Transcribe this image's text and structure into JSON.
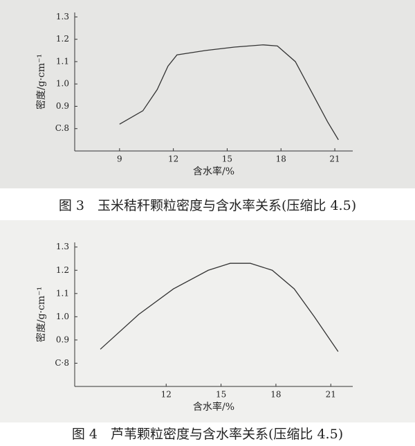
{
  "chart_data": [
    {
      "type": "line",
      "caption": "图 3　玉米秸秆颗粒密度与含水率关系(压缩比 4.5)",
      "xlabel": "含水率/%",
      "ylabel": "密度/g·cm⁻¹",
      "x": [
        9.0,
        10.3,
        11.1,
        11.7,
        12.2,
        13.8,
        15.4,
        17.0,
        17.8,
        18.8,
        19.8,
        20.6,
        21.2
      ],
      "values": [
        0.82,
        0.88,
        0.975,
        1.08,
        1.13,
        1.15,
        1.165,
        1.175,
        1.17,
        1.1,
        0.95,
        0.83,
        0.75
      ],
      "color": "#333333",
      "xlim": [
        6.5,
        22
      ],
      "ylim": [
        0.7,
        1.32
      ],
      "xticks": [
        9,
        12,
        15,
        18,
        21
      ],
      "yticks": [
        1.3,
        1.2,
        1.1,
        {
          "value": 1.0,
          "label": "1.0"
        },
        0.9,
        {
          "value": 0.8,
          "label": "C.8"
        }
      ]
    },
    {
      "type": "line",
      "caption": "图 4　芦苇颗粒密度与含水率关系(压缩比 4.5)",
      "xlabel": "含水率/%",
      "ylabel": "密度/g·cm⁻¹",
      "x": [
        8.4,
        10.5,
        12.4,
        14.3,
        15.5,
        16.6,
        17.8,
        19.0,
        20.1,
        21.4
      ],
      "values": [
        0.86,
        1.01,
        1.12,
        1.2,
        1.23,
        1.23,
        1.2,
        1.12,
        1.0,
        0.85
      ],
      "color": "#333333",
      "xlim": [
        7,
        22.2
      ],
      "ylim": [
        0.7,
        1.32
      ],
      "xticks": [
        12,
        15,
        18,
        21
      ],
      "yticks": [
        1.3,
        1.2,
        1.1,
        {
          "value": 1.0,
          "label": "1.0"
        },
        0.9,
        {
          "value": 0.8,
          "label": "C·8"
        }
      ]
    }
  ]
}
